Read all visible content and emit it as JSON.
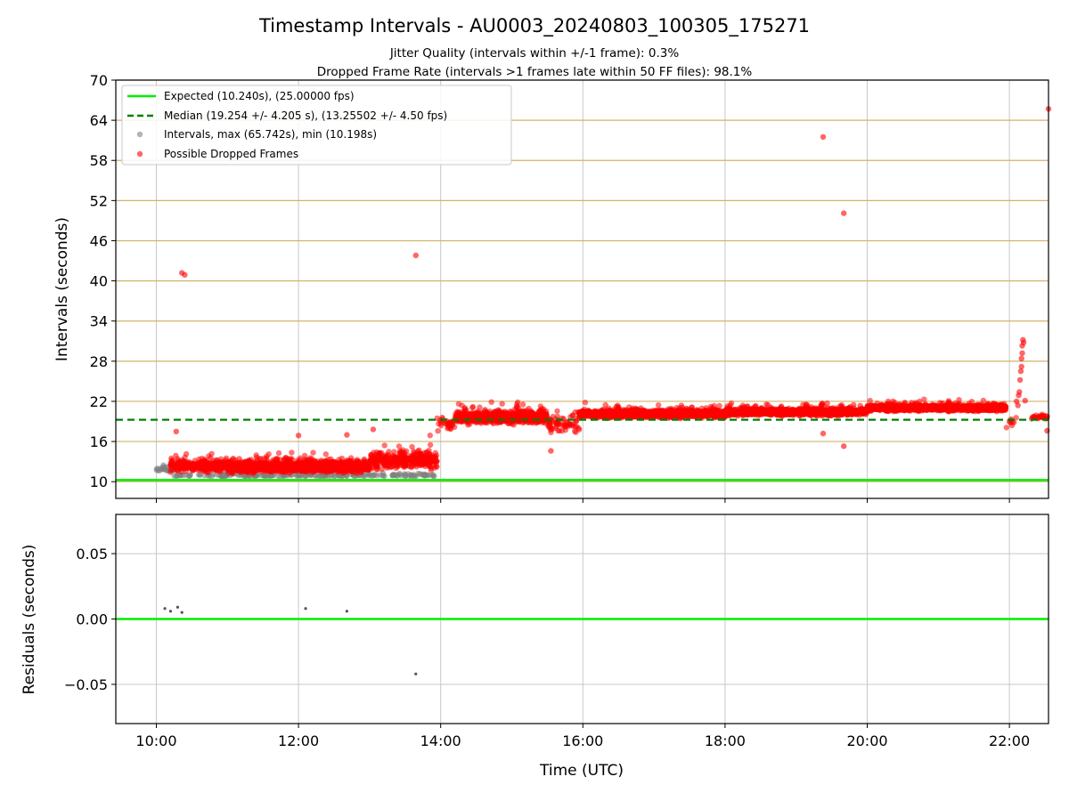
{
  "chart_data": [
    {
      "type": "scatter",
      "title": "Timestamp Intervals - AU0003_20240803_100305_175271",
      "subtitle_lines": [
        "Jitter Quality (intervals within +/-1 frame): 0.3%",
        "Dropped Frame Rate (intervals >1 frames late within 50 FF files): 98.1%"
      ],
      "xlabel": "",
      "ylabel": "Intervals (seconds)",
      "xlim": [
        9.43,
        22.55
      ],
      "ylim": [
        7.5,
        70
      ],
      "yticks": [
        10,
        16,
        22,
        28,
        34,
        40,
        46,
        52,
        58,
        64,
        70
      ],
      "xticks": [
        10,
        12,
        14,
        16,
        18,
        20,
        22
      ],
      "grid": true,
      "legend_position": "top-left",
      "legend": [
        "Expected (10.240s), (25.00000 fps)",
        "Median (19.254 +/- 4.205 s), (13.25502 +/- 4.50 fps)",
        "Intervals, max (65.742s), min (10.198s)",
        "Possible Dropped Frames"
      ],
      "expected_line": 10.24,
      "median_line": 19.254,
      "series": [
        {
          "name": "Intervals, max (65.742s), min (10.198s)",
          "color": "#808080",
          "segments": [
            {
              "x0": 10.0,
              "x1": 10.25,
              "base": 11.6,
              "spread": 1.6,
              "density": 120
            },
            {
              "x0": 10.25,
              "x1": 13.95,
              "base": 10.8,
              "spread": 0.6,
              "density": 60
            }
          ]
        },
        {
          "name": "Possible Dropped Frames",
          "color": "#ff0000",
          "segments": [
            {
              "x0": 10.2,
              "x1": 11.0,
              "base": 12.4,
              "spread": 2.6,
              "density": 350
            },
            {
              "x0": 11.0,
              "x1": 13.0,
              "base": 12.2,
              "spread": 2.2,
              "density": 700
            },
            {
              "x0": 13.0,
              "x1": 13.95,
              "base": 13.2,
              "spread": 3.5,
              "density": 350
            },
            {
              "x0": 13.95,
              "x1": 14.2,
              "base": 18.5,
              "spread": 2.5,
              "density": 120
            },
            {
              "x0": 14.2,
              "x1": 15.5,
              "base": 19.6,
              "spread": 2.4,
              "density": 550
            },
            {
              "x0": 15.5,
              "x1": 15.95,
              "base": 18.6,
              "spread": 3.5,
              "density": 150
            },
            {
              "x0": 15.95,
              "x1": 18.0,
              "base": 20.1,
              "spread": 1.5,
              "density": 650
            },
            {
              "x0": 18.0,
              "x1": 20.0,
              "base": 20.4,
              "spread": 1.4,
              "density": 650
            },
            {
              "x0": 20.0,
              "x1": 21.95,
              "base": 21.0,
              "spread": 1.2,
              "density": 650
            },
            {
              "x0": 21.95,
              "x1": 22.1,
              "base": 18.8,
              "spread": 2.6,
              "density": 60
            },
            {
              "x0": 22.3,
              "x1": 22.55,
              "base": 19.7,
              "spread": 1.0,
              "density": 90
            }
          ],
          "outliers": [
            [
              10.36,
              41.2
            ],
            [
              10.4,
              40.9
            ],
            [
              13.65,
              43.8
            ],
            [
              19.38,
              61.5
            ],
            [
              19.67,
              50.1
            ],
            [
              22.55,
              65.7
            ],
            [
              19.38,
              17.2
            ],
            [
              19.67,
              15.3
            ],
            [
              13.05,
              17.8
            ],
            [
              12.68,
              17.0
            ],
            [
              10.28,
              17.5
            ],
            [
              22.53,
              17.6
            ],
            [
              15.55,
              14.6
            ],
            [
              12.0,
              16.9
            ],
            [
              22.13,
              22.9
            ],
            [
              22.14,
              23.4
            ],
            [
              22.15,
              25.2
            ],
            [
              22.16,
              26.5
            ],
            [
              22.17,
              27.2
            ],
            [
              22.17,
              28.4
            ],
            [
              22.18,
              29.2
            ],
            [
              22.18,
              30.3
            ],
            [
              22.19,
              31.2
            ],
            [
              22.2,
              30.8
            ],
            [
              22.12,
              21.4
            ],
            [
              22.1,
              22.0
            ],
            [
              22.22,
              22.1
            ]
          ]
        }
      ]
    },
    {
      "type": "scatter",
      "xlabel": "Time (UTC)",
      "ylabel": "Residuals (seconds)",
      "xlim": [
        9.43,
        22.55
      ],
      "ylim": [
        -0.08,
        0.08
      ],
      "yticks": [
        -0.05,
        0.0,
        0.05
      ],
      "ytick_labels": [
        "−0.05",
        "0.00",
        "0.05"
      ],
      "xticks": [
        10,
        12,
        14,
        16,
        18,
        20,
        22
      ],
      "xtick_labels": [
        "10:00",
        "12:00",
        "14:00",
        "16:00",
        "18:00",
        "20:00",
        "22:00"
      ],
      "grid": true,
      "zero_line": 0.0,
      "points": [
        [
          10.12,
          0.008
        ],
        [
          10.2,
          0.006
        ],
        [
          10.3,
          0.009
        ],
        [
          10.36,
          0.005
        ],
        [
          12.1,
          0.008
        ],
        [
          12.68,
          0.006
        ],
        [
          13.65,
          -0.042
        ]
      ]
    }
  ],
  "colors": {
    "expected": "#00ee00",
    "median": "#008000",
    "dropped": "#ff0000",
    "intervals": "#808080",
    "hgrid_top": "#d2b36a",
    "grid": "#c8c8c8"
  }
}
